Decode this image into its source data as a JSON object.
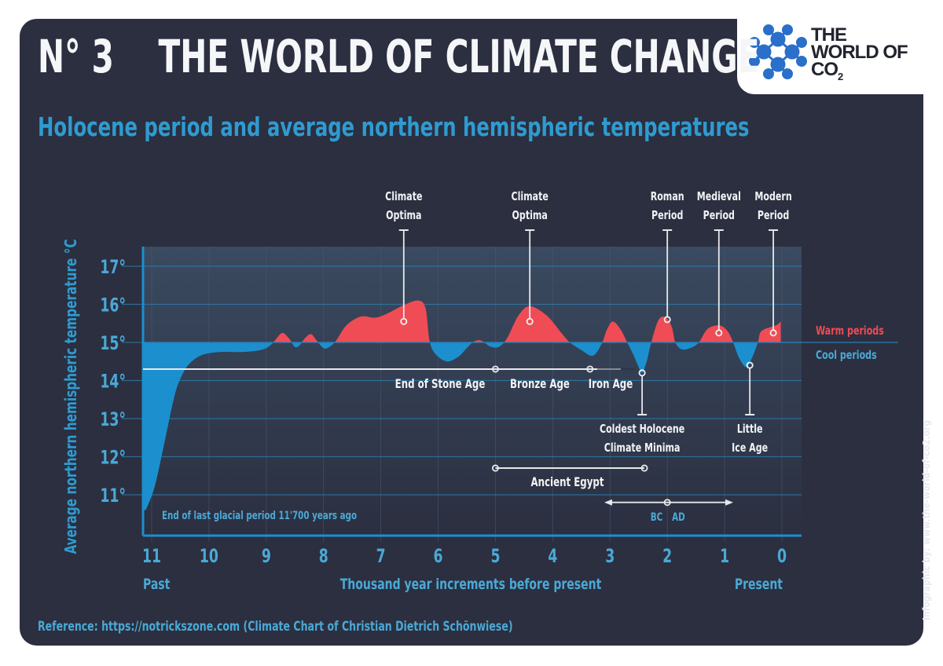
{
  "header": {
    "number": "N° 3",
    "title": "THE WORLD OF CLIMATE CHANGE",
    "subtitle": "Holocene period and average northern hemispheric temperatures"
  },
  "logo": {
    "icon": "molecule-network-icon",
    "line1": "THE",
    "line2": "WORLD OF",
    "line3": "CO",
    "line3_sub": "2",
    "color": "#2a6fc9"
  },
  "footer": {
    "reference": "Reference: https://notrickszone.com (Climate Chart of Christian Dietrich Schönwiese)",
    "credit": "Infographic by: www.the-world-of-co2.org"
  },
  "colors": {
    "background": "#2b2f40",
    "warm": "#ef4c55",
    "cool": "#1c8fce",
    "axis_text": "#4aa9d6",
    "plot_bg": "#354459"
  },
  "chart_data": {
    "type": "area",
    "title": "Holocene period and average northern hemispheric temperatures",
    "xlabel": "Thousand year increments before present",
    "ylabel": "Average northern hemispheric temperature °C",
    "x_start_label": "Past",
    "x_end_label": "Present",
    "xlim": [
      11.15,
      0
    ],
    "ylim": [
      10.1,
      17.5
    ],
    "baseline": 15,
    "grid": true,
    "x_ticks": [
      "11",
      "10",
      "9",
      "8",
      "7",
      "6",
      "5",
      "4",
      "3",
      "2",
      "1",
      "0"
    ],
    "x_tick_values": [
      11,
      10,
      9,
      8,
      7,
      6,
      5,
      4,
      3,
      2,
      1,
      0
    ],
    "y_ticks": [
      "11°",
      "12°",
      "13°",
      "14°",
      "15°",
      "16°",
      "17°"
    ],
    "y_tick_values": [
      11,
      12,
      13,
      14,
      15,
      16,
      17
    ],
    "legend": [
      {
        "label": "Warm periods",
        "color": "#ef4c55",
        "position": "right"
      },
      {
        "label": "Cool periods",
        "color": "#1c8fce",
        "position": "right"
      }
    ],
    "series": [
      {
        "name": "Northern hemisphere temperature",
        "x": [
          11.1,
          10.95,
          10.8,
          10.6,
          10.45,
          10.3,
          10.1,
          9.8,
          9.4,
          9.1,
          8.95,
          8.85,
          8.72,
          8.6,
          8.5,
          8.42,
          8.33,
          8.22,
          8.12,
          8.0,
          7.9,
          7.78,
          7.6,
          7.35,
          7.1,
          6.9,
          6.6,
          6.35,
          6.22,
          6.15,
          6.05,
          5.85,
          5.65,
          5.5,
          5.38,
          5.25,
          5.1,
          4.95,
          4.8,
          4.6,
          4.4,
          4.1,
          3.85,
          3.7,
          3.5,
          3.3,
          3.15,
          3.05,
          2.95,
          2.82,
          2.7,
          2.6,
          2.5,
          2.44,
          2.36,
          2.28,
          2.15,
          2.02,
          1.92,
          1.86,
          1.75,
          1.6,
          1.45,
          1.3,
          1.1,
          0.95,
          0.85,
          0.75,
          0.62,
          0.52,
          0.42,
          0.38,
          0.3,
          0.2,
          0.1,
          0.02
        ],
        "y": [
          10.6,
          11.2,
          12.2,
          13.6,
          14.2,
          14.5,
          14.68,
          14.75,
          14.75,
          14.8,
          14.9,
          15.05,
          15.25,
          15.1,
          14.88,
          14.92,
          15.1,
          15.22,
          15.05,
          14.85,
          14.88,
          15.05,
          15.45,
          15.68,
          15.65,
          15.75,
          15.98,
          16.1,
          15.9,
          15.05,
          14.7,
          14.5,
          14.62,
          14.85,
          15.02,
          15.05,
          14.9,
          14.88,
          15.1,
          15.7,
          15.95,
          15.7,
          15.25,
          15.0,
          14.8,
          14.65,
          14.95,
          15.35,
          15.55,
          15.35,
          15.0,
          14.7,
          14.35,
          14.2,
          14.5,
          15.0,
          15.6,
          15.65,
          15.4,
          15.0,
          14.82,
          14.85,
          15.0,
          15.35,
          15.45,
          15.3,
          15.0,
          14.6,
          14.35,
          14.6,
          15.0,
          15.25,
          15.35,
          15.4,
          15.45,
          15.55
        ]
      }
    ],
    "annotations": [
      {
        "label": "Climate Optima",
        "lines": [
          "Climate",
          "Optima"
        ],
        "x": 6.6,
        "y": 15.55,
        "direction": "up",
        "type": "warm"
      },
      {
        "label": "Climate Optima",
        "lines": [
          "Climate",
          "Optima"
        ],
        "x": 4.4,
        "y": 15.55,
        "direction": "up",
        "type": "warm"
      },
      {
        "label": "Roman Period",
        "lines": [
          "Roman",
          "Period"
        ],
        "x": 2.0,
        "y": 15.6,
        "direction": "up",
        "type": "warm"
      },
      {
        "label": "Medieval Period",
        "lines": [
          "Medieval",
          "Period"
        ],
        "x": 1.1,
        "y": 15.25,
        "direction": "up",
        "type": "warm"
      },
      {
        "label": "Modern Period",
        "lines": [
          "Modern",
          "Period"
        ],
        "x": 0.15,
        "y": 15.25,
        "direction": "up",
        "type": "warm"
      },
      {
        "label": "Coldest Holocene Climate Minima",
        "lines": [
          "Coldest Holocene",
          "Climate Minima"
        ],
        "x": 2.44,
        "y": 14.2,
        "direction": "down",
        "type": "cool"
      },
      {
        "label": "Little Ice Age",
        "lines": [
          "Little",
          "Ice Age"
        ],
        "x": 0.56,
        "y": 14.4,
        "direction": "down",
        "type": "cool"
      }
    ],
    "eras": [
      {
        "label": "End of Stone Age",
        "from": 11.0,
        "to": 5.0,
        "y": 14.3
      },
      {
        "label": "Bronze Age",
        "from": 5.0,
        "to": 3.35,
        "y": 14.3
      },
      {
        "label": "Iron Age",
        "from": 3.35,
        "to": 2.4,
        "y": 14.3
      },
      {
        "label": "Ancient Egypt",
        "from": 5.0,
        "to": 2.4,
        "y": 11.7
      }
    ],
    "bc_ad": {
      "left_label": "BC",
      "right_label": "AD",
      "center": 2.0,
      "from": 3.1,
      "to": 0.85,
      "y": 10.8
    },
    "note": "End of last glacial period 11'700 years ago"
  }
}
